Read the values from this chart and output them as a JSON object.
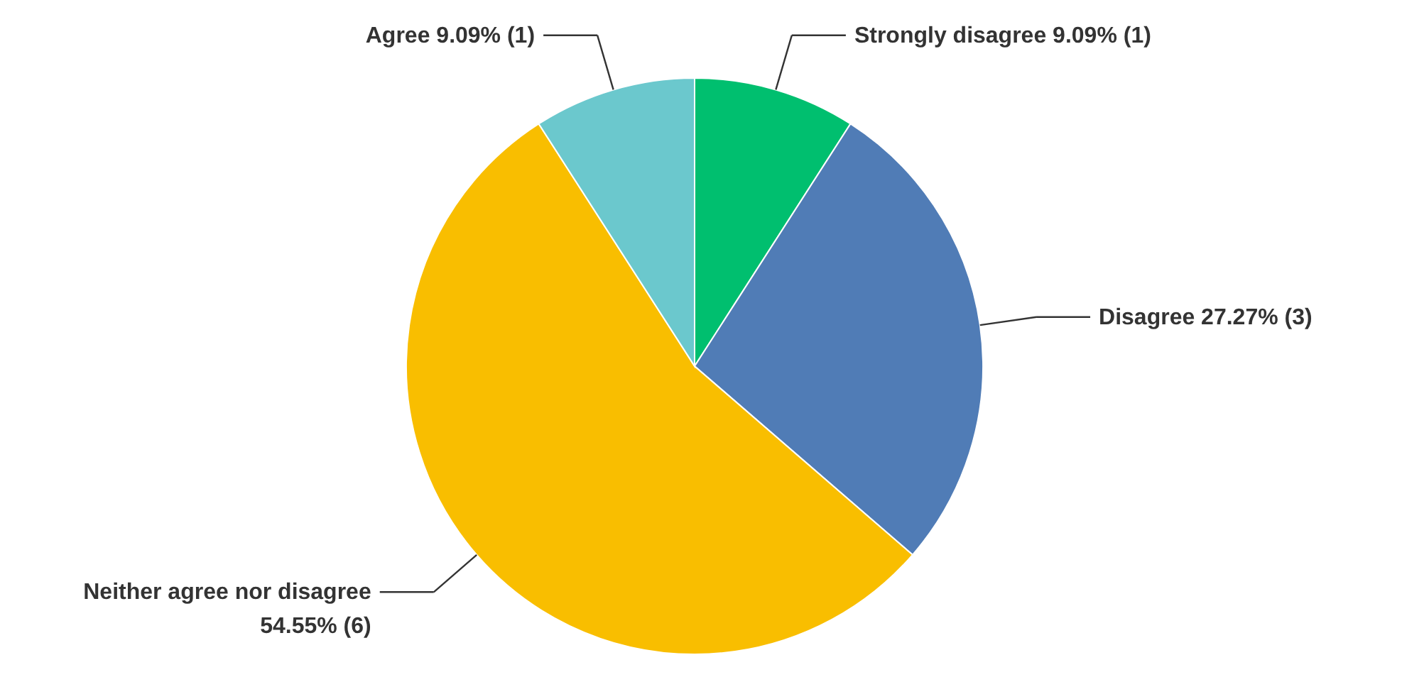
{
  "chart_data": {
    "type": "pie",
    "categories": [
      "Strongly disagree",
      "Disagree",
      "Neither agree nor disagree",
      "Agree"
    ],
    "values": [
      9.09,
      27.27,
      54.55,
      9.09
    ],
    "value_labels": [
      "9.09% (1)",
      "27.27% (3)",
      "54.55% (6)",
      "9.09% (1)"
    ],
    "colors": [
      "#00bf6f",
      "#507cb6",
      "#f9be00",
      "#6bc8cd"
    ]
  }
}
